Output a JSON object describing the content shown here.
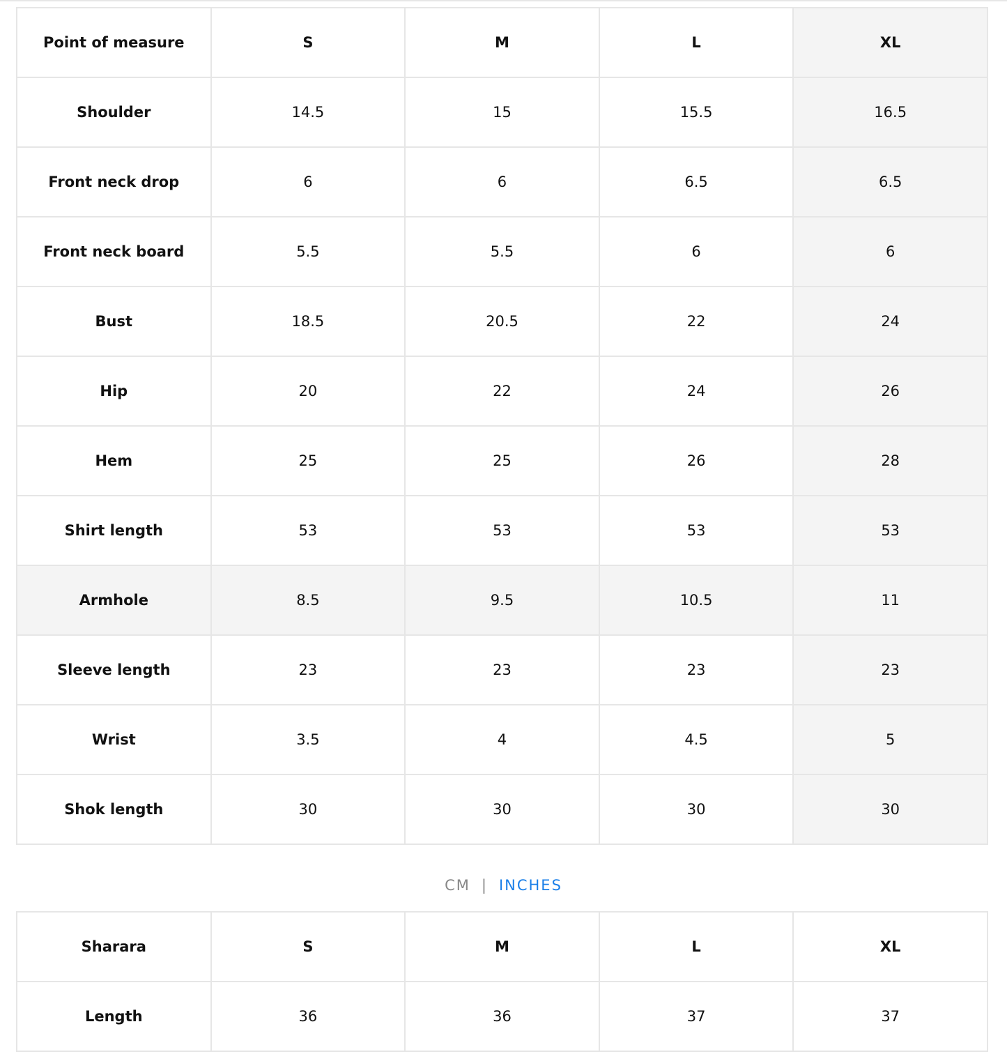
{
  "size_table": {
    "headers": [
      "Point of measure",
      "S",
      "M",
      "L",
      "XL"
    ],
    "highlighted_column": "XL",
    "highlighted_row": "Armhole",
    "rows": [
      [
        "Shoulder",
        "14.5",
        "15",
        "15.5",
        "16.5"
      ],
      [
        "Front neck drop",
        "6",
        "6",
        "6.5",
        "6.5"
      ],
      [
        "Front neck board",
        "5.5",
        "5.5",
        "6",
        "6"
      ],
      [
        "Bust",
        "18.5",
        "20.5",
        "22",
        "24"
      ],
      [
        "Hip",
        "20",
        "22",
        "24",
        "26"
      ],
      [
        "Hem",
        "25",
        "25",
        "26",
        "28"
      ],
      [
        "Shirt length",
        "53",
        "53",
        "53",
        "53"
      ],
      [
        "Armhole",
        "8.5",
        "9.5",
        "10.5",
        "11"
      ],
      [
        "Sleeve length",
        "23",
        "23",
        "23",
        "23"
      ],
      [
        "Wrist",
        "3.5",
        "4",
        "4.5",
        "5"
      ],
      [
        "Shok length",
        "30",
        "30",
        "30",
        "30"
      ]
    ]
  },
  "unit_toggle": {
    "cm": "CM",
    "separator": "|",
    "inches": "INCHES",
    "active": "INCHES",
    "active_color": "#1a7fe8"
  },
  "sharara_table": {
    "headers": [
      "Sharara",
      "S",
      "M",
      "L",
      "XL"
    ],
    "rows": [
      [
        "Length",
        "36",
        "36",
        "37",
        "37"
      ]
    ]
  }
}
